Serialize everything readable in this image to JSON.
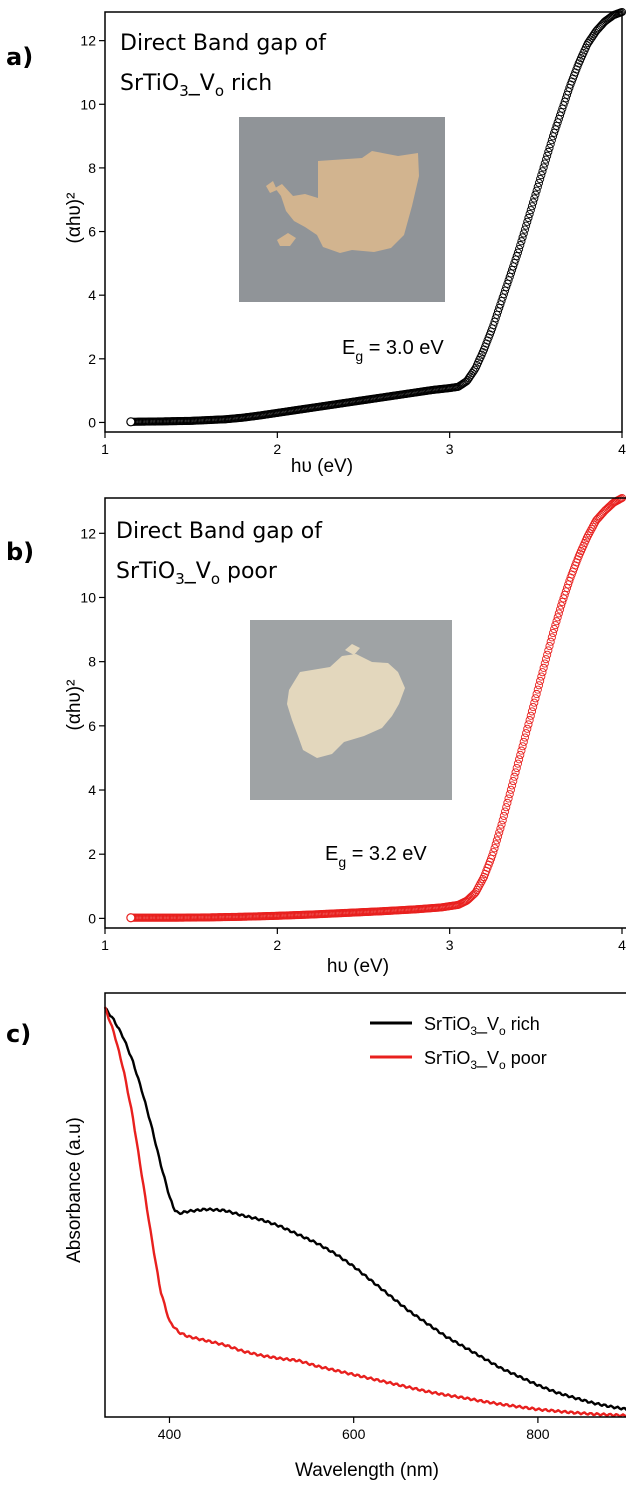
{
  "panels": {
    "a": {
      "letter": "a)",
      "title_line1": "Direct Band gap of",
      "title_line2_prefix": "SrTiO",
      "title_line2_sub1": "3",
      "title_line2_mid": "_V",
      "title_line2_sub2": "o",
      "title_line2_suffix": " rich",
      "eg_prefix": "E",
      "eg_sub": "g",
      "eg_value": " = 3.0 eV",
      "sample_photo": "rich-sample-photo"
    },
    "b": {
      "letter": "b)",
      "title_line1": "Direct Band gap of",
      "title_line2_prefix": "SrTiO",
      "title_line2_sub1": "3",
      "title_line2_mid": "_V",
      "title_line2_sub2": "o",
      "title_line2_suffix": " poor",
      "eg_prefix": "E",
      "eg_sub": "g",
      "eg_value": " = 3.2 eV",
      "sample_photo": "poor-sample-photo"
    },
    "c": {
      "letter": "c)"
    }
  },
  "colors": {
    "rich": "#000000",
    "poor": "#e8201e",
    "photo_bg": "#8d9194",
    "rich_powder": "#d2b48f",
    "poor_powder": "#e3d7bd"
  },
  "chart_data": [
    {
      "type": "scatter",
      "marker": "open-circle",
      "xlabel": "hυ (eV)",
      "ylabel": "(αhυ)²",
      "xlim": [
        1,
        4
      ],
      "ylim": [
        -0.3,
        12.9
      ],
      "xticks": [
        1,
        2,
        3,
        4
      ],
      "yticks": [
        0,
        2,
        4,
        6,
        8,
        10,
        12
      ],
      "series": [
        {
          "color": "#000000",
          "x": [
            1.15,
            1.3,
            1.5,
            1.7,
            1.8,
            1.9,
            2.0,
            2.1,
            2.2,
            2.3,
            2.4,
            2.5,
            2.6,
            2.7,
            2.8,
            2.9,
            3.0,
            3.05,
            3.1,
            3.15,
            3.2,
            3.25,
            3.3,
            3.35,
            3.4,
            3.45,
            3.5,
            3.55,
            3.6,
            3.65,
            3.7,
            3.75,
            3.8,
            3.85,
            3.9,
            3.95,
            4.0
          ],
          "y": [
            0.02,
            0.03,
            0.05,
            0.1,
            0.15,
            0.22,
            0.3,
            0.38,
            0.46,
            0.54,
            0.62,
            0.7,
            0.78,
            0.86,
            0.94,
            1.02,
            1.08,
            1.12,
            1.3,
            1.7,
            2.3,
            3.0,
            3.8,
            4.6,
            5.4,
            6.3,
            7.2,
            8.1,
            9.0,
            9.8,
            10.6,
            11.3,
            11.9,
            12.3,
            12.6,
            12.8,
            12.9
          ]
        }
      ]
    },
    {
      "type": "scatter",
      "marker": "open-circle",
      "xlabel": "hυ (eV)",
      "ylabel": "(αhυ)²",
      "xlim": [
        1,
        4
      ],
      "ylim": [
        -0.3,
        13.1
      ],
      "xticks": [
        1,
        2,
        3,
        4
      ],
      "yticks": [
        0,
        2,
        4,
        6,
        8,
        10,
        12
      ],
      "series": [
        {
          "color": "#e8201e",
          "x": [
            1.15,
            1.4,
            1.6,
            1.8,
            2.0,
            2.2,
            2.4,
            2.6,
            2.8,
            2.95,
            3.05,
            3.1,
            3.15,
            3.2,
            3.25,
            3.3,
            3.35,
            3.4,
            3.45,
            3.5,
            3.55,
            3.6,
            3.65,
            3.7,
            3.75,
            3.8,
            3.85,
            3.9,
            3.95,
            4.0
          ],
          "y": [
            0.02,
            0.02,
            0.03,
            0.05,
            0.08,
            0.12,
            0.17,
            0.22,
            0.28,
            0.34,
            0.42,
            0.55,
            0.8,
            1.3,
            2.0,
            2.9,
            3.9,
            4.9,
            5.9,
            6.9,
            7.9,
            8.9,
            9.8,
            10.6,
            11.3,
            11.9,
            12.4,
            12.7,
            12.95,
            13.1
          ]
        }
      ]
    },
    {
      "type": "line",
      "xlabel": "Wavelength (nm)",
      "ylabel": "Absorbance (a.u)",
      "xlim": [
        330,
        900
      ],
      "ylim": [
        0,
        1
      ],
      "xticks": [
        400,
        600,
        800
      ],
      "yticks": [],
      "legend_position": "top-right",
      "series": [
        {
          "label": "SrTiO3_Vo rich",
          "color": "#000000",
          "x": [
            330,
            340,
            350,
            360,
            370,
            380,
            390,
            400,
            405,
            410,
            420,
            440,
            460,
            480,
            500,
            520,
            540,
            560,
            580,
            600,
            620,
            640,
            660,
            680,
            700,
            720,
            740,
            760,
            780,
            800,
            820,
            840,
            860,
            880,
            900
          ],
          "y": [
            0.965,
            0.935,
            0.895,
            0.84,
            0.77,
            0.69,
            0.6,
            0.52,
            0.49,
            0.48,
            0.485,
            0.49,
            0.487,
            0.475,
            0.465,
            0.45,
            0.43,
            0.41,
            0.385,
            0.355,
            0.32,
            0.285,
            0.25,
            0.22,
            0.19,
            0.165,
            0.14,
            0.115,
            0.095,
            0.075,
            0.058,
            0.045,
            0.033,
            0.024,
            0.017
          ]
        },
        {
          "label": "SrTiO3_Vo poor",
          "color": "#e8201e",
          "x": [
            330,
            340,
            350,
            360,
            370,
            380,
            390,
            400,
            410,
            420,
            440,
            460,
            480,
            500,
            520,
            540,
            560,
            580,
            600,
            620,
            640,
            660,
            680,
            700,
            720,
            740,
            760,
            780,
            800,
            820,
            840,
            860,
            880,
            900
          ],
          "y": [
            0.965,
            0.905,
            0.82,
            0.71,
            0.57,
            0.43,
            0.3,
            0.225,
            0.2,
            0.19,
            0.18,
            0.17,
            0.155,
            0.145,
            0.138,
            0.133,
            0.12,
            0.11,
            0.1,
            0.09,
            0.08,
            0.07,
            0.06,
            0.052,
            0.045,
            0.037,
            0.03,
            0.024,
            0.018,
            0.014,
            0.01,
            0.007,
            0.005,
            0.003
          ]
        }
      ]
    }
  ]
}
